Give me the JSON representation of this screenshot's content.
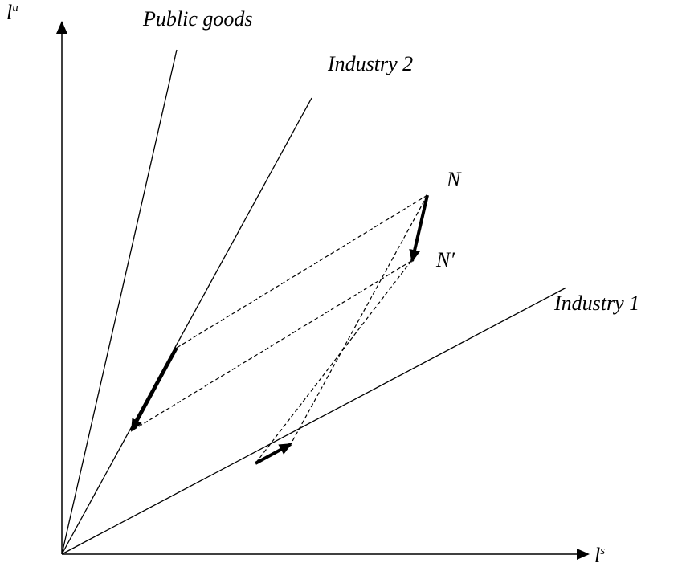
{
  "axes": {
    "y": {
      "base": "l",
      "sup": "u"
    },
    "x": {
      "base": "l",
      "sup": "s"
    }
  },
  "lines": [
    {
      "label": "Public goods"
    },
    {
      "label": "Industry 2"
    },
    {
      "label": "Industry 1"
    }
  ],
  "points": [
    {
      "label": "N"
    },
    {
      "label": "N′"
    }
  ]
}
